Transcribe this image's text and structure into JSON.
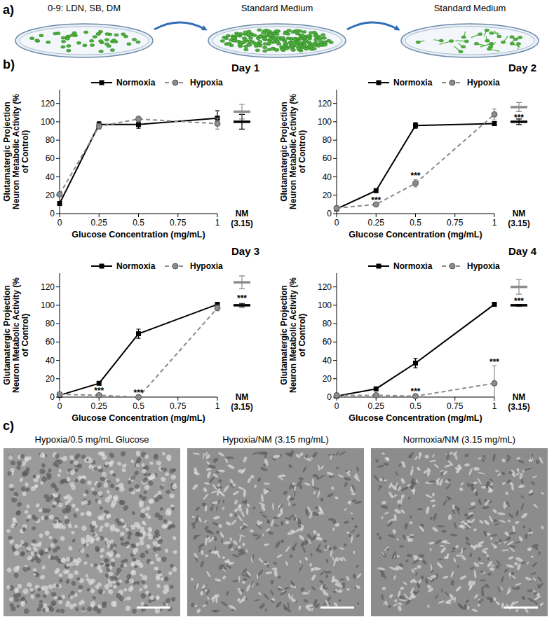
{
  "panel_a": {
    "label": "a)",
    "steps": [
      "0-9: LDN, SB, DM",
      "Standard Medium",
      "Standard Medium"
    ]
  },
  "panel_b_label": "b)",
  "chart_data": [
    {
      "type": "line",
      "title": "Day 1",
      "x_label": "Glucose Concentration (mg/mL)",
      "y_label": "Glutamatergic Projection Neuron Metabolic Activity (% of Control)",
      "x": [
        0,
        0.25,
        0.5,
        1
      ],
      "xlim": [
        0,
        1
      ],
      "xticks": [
        0,
        0.25,
        0.5,
        0.75,
        1
      ],
      "ylim": [
        0,
        135
      ],
      "yticks": [
        0,
        20,
        40,
        60,
        80,
        100,
        120
      ],
      "legend": "top",
      "control_label": "NM",
      "control_sublabel": "(3.15)",
      "series": [
        {
          "name": "Normoxia",
          "color": "#000000",
          "marker": "square",
          "line_style": "solid",
          "values": [
            11,
            97,
            97,
            104
          ],
          "errors": [
            2,
            3,
            4,
            8
          ],
          "control": 100,
          "control_error": 8
        },
        {
          "name": "Hypoxia",
          "color": "#8c8c8c",
          "marker": "circle",
          "line_style": "dashed",
          "values": [
            21,
            95,
            103,
            98
          ],
          "errors": [
            2,
            3,
            3,
            6
          ],
          "control": 111,
          "control_error": 8
        }
      ]
    },
    {
      "type": "line",
      "title": "Day 2",
      "x_label": "Glucose Concentration (mg/mL)",
      "y_label": "Glutamatergic Projection Neuron Metabolic Activity (% of Control)",
      "x": [
        0,
        0.25,
        0.5,
        1
      ],
      "xlim": [
        0,
        1
      ],
      "xticks": [
        0,
        0.25,
        0.5,
        0.75,
        1
      ],
      "ylim": [
        0,
        135
      ],
      "yticks": [
        0,
        20,
        40,
        60,
        80,
        100,
        120
      ],
      "legend": "top",
      "control_label": "NM",
      "control_sublabel": "(3.15)",
      "series": [
        {
          "name": "Normoxia",
          "color": "#000000",
          "marker": "square",
          "line_style": "solid",
          "values": [
            5,
            25,
            96,
            98
          ],
          "errors": [
            1,
            2,
            3,
            2
          ],
          "control": 100,
          "control_error": 3
        },
        {
          "name": "Hypoxia",
          "color": "#8c8c8c",
          "marker": "circle",
          "line_style": "dashed",
          "values": [
            6,
            10,
            33,
            108
          ],
          "errors": [
            1,
            1,
            4,
            6
          ],
          "control": 116,
          "control_error": 5
        }
      ],
      "significance": {
        "label": "***",
        "x": [
          0.25,
          0.5
        ],
        "control": true
      }
    },
    {
      "type": "line",
      "title": "Day 3",
      "x_label": "Glucose Concentration (mg/mL)",
      "y_label": "Glutamatergic Projection Neuron Metabolic Activity (% of Control)",
      "x": [
        0,
        0.25,
        0.5,
        1
      ],
      "xlim": [
        0,
        1
      ],
      "xticks": [
        0,
        0.25,
        0.5,
        0.75,
        1
      ],
      "ylim": [
        0,
        135
      ],
      "yticks": [
        0,
        20,
        40,
        60,
        80,
        100,
        120
      ],
      "legend": "top",
      "control_label": "NM",
      "control_sublabel": "(3.15)",
      "series": [
        {
          "name": "Normoxia",
          "color": "#000000",
          "marker": "square",
          "line_style": "solid",
          "values": [
            2,
            15,
            69,
            101
          ],
          "errors": [
            1,
            1,
            5,
            2
          ],
          "control": 100,
          "control_error": 2
        },
        {
          "name": "Hypoxia",
          "color": "#8c8c8c",
          "marker": "circle",
          "line_style": "dashed",
          "values": [
            3,
            2,
            0,
            97
          ],
          "errors": [
            1,
            1,
            1,
            3
          ],
          "control": 125,
          "control_error": 7
        }
      ],
      "significance": {
        "label": "***",
        "x": [
          0.25,
          0.5
        ],
        "control": true
      }
    },
    {
      "type": "line",
      "title": "Day 4",
      "x_label": "Glucose Concentration (mg/mL)",
      "y_label": "Glutamatergic Projection Neuron Metabolic Activity (% of Control)",
      "x": [
        0,
        0.25,
        0.5,
        1
      ],
      "xlim": [
        0,
        1
      ],
      "xticks": [
        0,
        0.25,
        0.5,
        0.75,
        1
      ],
      "ylim": [
        0,
        135
      ],
      "yticks": [
        0,
        20,
        40,
        60,
        80,
        100,
        120
      ],
      "legend": "top",
      "control_label": "NM",
      "control_sublabel": "(3.15)",
      "series": [
        {
          "name": "Normoxia",
          "color": "#000000",
          "marker": "square",
          "line_style": "solid",
          "values": [
            1,
            9,
            37,
            101
          ],
          "errors": [
            1,
            2,
            5,
            2
          ],
          "control": 100,
          "control_error": 1
        },
        {
          "name": "Hypoxia",
          "color": "#8c8c8c",
          "marker": "circle",
          "line_style": "dashed",
          "values": [
            2,
            2,
            1,
            15
          ],
          "errors": [
            1,
            1,
            1,
            19
          ],
          "control": 120,
          "control_error": 8
        }
      ],
      "significance": {
        "label": "***",
        "x": [
          0.5,
          1
        ],
        "control": true
      }
    }
  ],
  "panel_c": {
    "label": "c)",
    "images": [
      "Hypoxia/0.5 mg/mL Glucose",
      "Hypoxia/NM (3.15 mg/mL)",
      "Normoxia/NM (3.15 mg/mL)"
    ]
  }
}
